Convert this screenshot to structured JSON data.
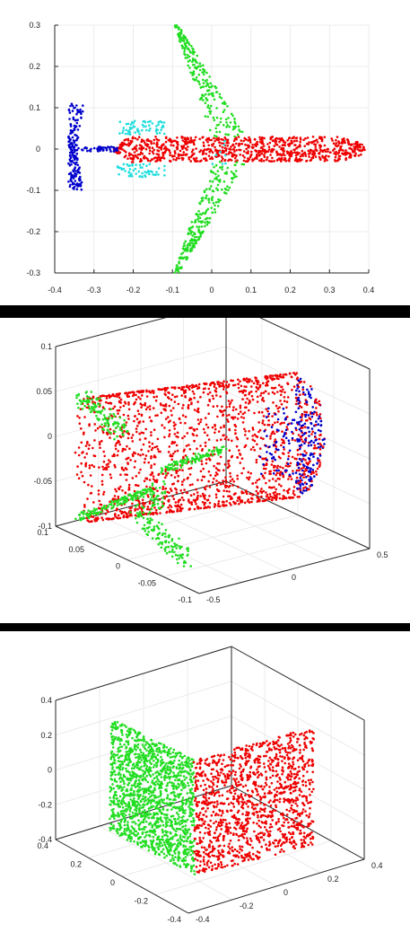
{
  "chart_data": [
    {
      "type": "scatter",
      "title": "",
      "xlabel": "",
      "ylabel": "",
      "view": "2d",
      "grid": true,
      "xlim": [
        -0.4,
        0.4
      ],
      "ylim": [
        -0.3,
        0.3
      ],
      "x_ticks": [
        "-0.4",
        "-0.3",
        "-0.2",
        "-0.1",
        "0",
        "0.1",
        "0.2",
        "0.3",
        "0.4"
      ],
      "y_ticks": [
        "-0.3",
        "-0.2",
        "-0.1",
        "0",
        "0.1",
        "0.2",
        "0.3"
      ],
      "colors": {
        "fuselage": "#ee0000",
        "wings": "#22dd22",
        "horizontal_tail": "#22dddd",
        "vertical_tail": "#0000cc"
      },
      "point_groups": [
        "fuselage",
        "wings",
        "horizontal_tail",
        "vertical_tail"
      ]
    },
    {
      "type": "scatter",
      "title": "",
      "view": "3d",
      "grid": true,
      "x_ticks": [
        "-0.5",
        "0",
        "0.5"
      ],
      "y_ticks": [
        "-0.1",
        "-0.05",
        "0",
        "0.05",
        "0.1"
      ],
      "z_ticks": [
        "-0.1",
        "-0.05",
        "0",
        "0.05",
        "0.1"
      ],
      "colors": {
        "body": "#ee0000",
        "wings": "#22dd22",
        "nose": "#0000cc"
      },
      "point_groups": [
        "body",
        "wings",
        "nose"
      ]
    },
    {
      "type": "scatter",
      "title": "",
      "view": "3d",
      "grid": true,
      "x_ticks": [
        "-0.4",
        "-0.2",
        "0",
        "0.2",
        "0.4"
      ],
      "y_ticks": [
        "-0.4",
        "-0.2",
        "0",
        "0.2",
        "0.4"
      ],
      "z_ticks": [
        "-0.4",
        "-0.2",
        "0",
        "0.2",
        "0.4"
      ],
      "colors": {
        "plane_a": "#22dd22",
        "plane_b": "#ee0000"
      },
      "point_groups": [
        "plane_a",
        "plane_b"
      ]
    }
  ]
}
